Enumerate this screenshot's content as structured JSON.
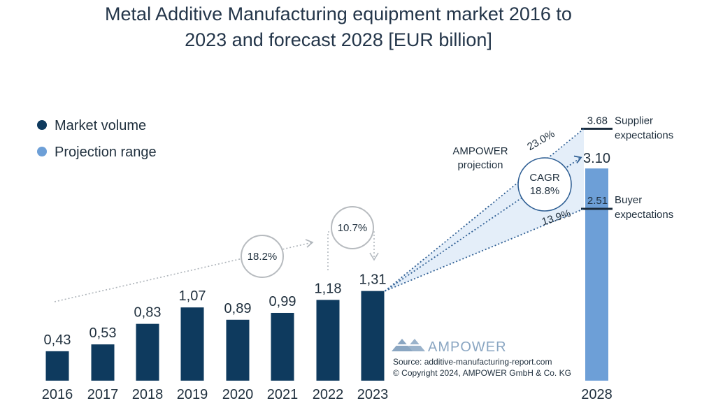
{
  "chart_data": {
    "type": "bar",
    "title": "Metal Additive Manufacturing equipment market 2016 to 2023 and forecast 2028 [EUR billion]",
    "title_lines": [
      "Metal Additive Manufacturing equipment market 2016 to",
      "2023 and forecast 2028 [EUR billion]"
    ],
    "categories": [
      "2016",
      "2017",
      "2018",
      "2019",
      "2020",
      "2021",
      "2022",
      "2023",
      "2028"
    ],
    "values": [
      0.43,
      0.53,
      0.83,
      1.07,
      0.89,
      0.99,
      1.18,
      1.31,
      3.1
    ],
    "value_labels": [
      "0,43",
      "0,53",
      "0,83",
      "1,07",
      "0,89",
      "0,99",
      "1,18",
      "1,31",
      "3.10"
    ],
    "ylim": [
      0,
      3.8
    ],
    "xlabel": "",
    "ylabel": "",
    "legend": [
      {
        "label": "Market volume",
        "color": "#0e3a5e"
      },
      {
        "label": "Projection range",
        "color": "#6d9fd7"
      }
    ],
    "forecast": {
      "year": "2028",
      "value": 3.1,
      "value_label": "3.10",
      "supplier_value": 3.68,
      "supplier_label": "3.68",
      "supplier_text": [
        "Supplier",
        "expectations"
      ],
      "buyer_value": 2.51,
      "buyer_label": "2.51",
      "buyer_text": [
        "Buyer",
        "expectations"
      ],
      "upper_rate": "23.0%",
      "lower_rate": "13.9%",
      "cagr_lines": [
        "CAGR",
        "18.8%"
      ],
      "projection_lines": [
        "AMPOWER",
        "projection"
      ]
    },
    "growth_annotations": [
      {
        "label": "18.2%",
        "from": "2016",
        "to": "2022"
      },
      {
        "label": "10.7%",
        "from": "2022",
        "to": "2023"
      }
    ]
  },
  "colors": {
    "bar": "#0e3a5e",
    "projection": "#6d9fd7",
    "fan": "#e4eef9",
    "dotted": "#2f5f94"
  },
  "brand": {
    "name": "AMPOWER",
    "source": "Source: additive-manufacturing-report.com",
    "copyright": "© Copyright 2024, AMPOWER GmbH & Co. KG"
  }
}
